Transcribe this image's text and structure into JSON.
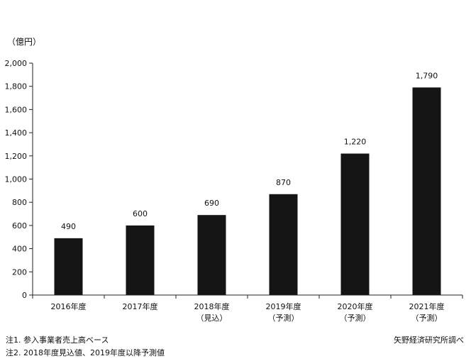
{
  "chart_data": {
    "type": "bar",
    "unit_label": "（億円）",
    "categories": [
      [
        "2016年度"
      ],
      [
        "2017年度"
      ],
      [
        "2018年度",
        "（見込）"
      ],
      [
        "2019年度",
        "（予測）"
      ],
      [
        "2020年度",
        "（予測）"
      ],
      [
        "2021年度",
        "（予測）"
      ]
    ],
    "values": [
      490,
      600,
      690,
      870,
      1220,
      1790
    ],
    "value_labels": [
      "490",
      "600",
      "690",
      "870",
      "1,220",
      "1,790"
    ],
    "ylim": [
      0,
      2000
    ],
    "yticks": [
      0,
      200,
      400,
      600,
      800,
      1000,
      1200,
      1400,
      1600,
      1800,
      2000
    ],
    "ytick_labels": [
      "0",
      "200",
      "400",
      "600",
      "800",
      "1,000",
      "1,200",
      "1,400",
      "1,600",
      "1,800",
      "2,000"
    ],
    "bar_color": "#141414",
    "grid": false
  },
  "notes": {
    "note1": "注1. 参入事業者売上高ベース",
    "note2": "注2. 2018年度見込値、2019年度以降予測値"
  },
  "source": "矢野経済研究所調べ"
}
